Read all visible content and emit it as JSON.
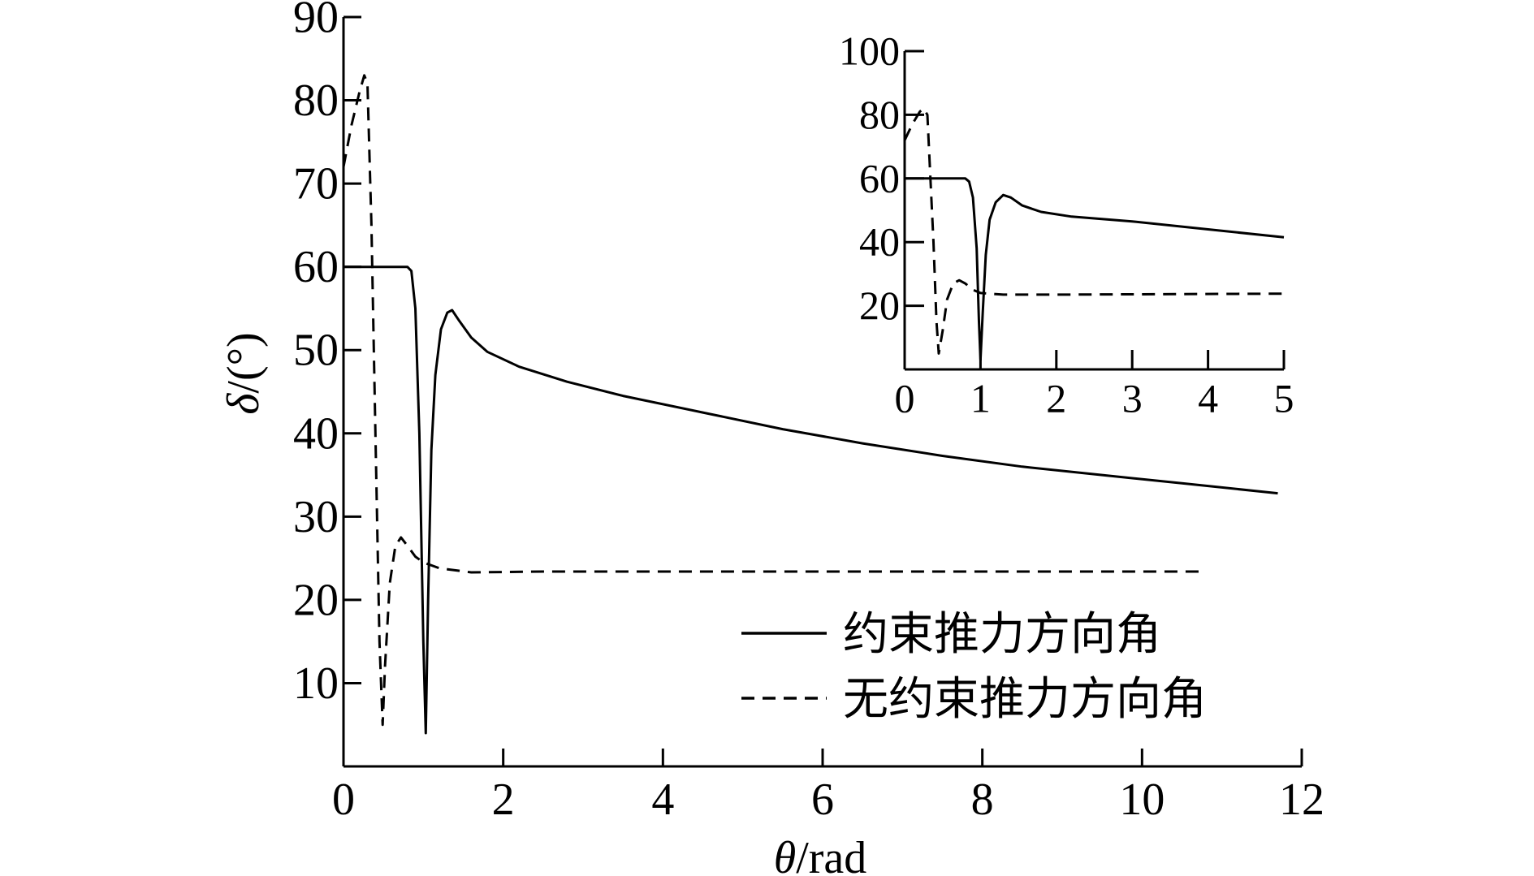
{
  "chart_data": [
    {
      "type": "line",
      "role": "main",
      "xlabel_symbol": "θ",
      "xlabel_unit": "/rad",
      "ylabel_symbol": "δ",
      "ylabel_unit": "/(°)",
      "xlim": [
        0,
        12
      ],
      "ylim": [
        0,
        90
      ],
      "xticks": [
        0,
        2,
        4,
        6,
        8,
        10,
        12
      ],
      "yticks": [
        10,
        20,
        30,
        40,
        50,
        60,
        70,
        80,
        90
      ],
      "grid": false,
      "legend_position": "bottom-right",
      "series": [
        {
          "name": "约束推力方向角",
          "style": "solid",
          "points": [
            [
              0,
              60
            ],
            [
              0.8,
              60
            ],
            [
              0.85,
              59.5
            ],
            [
              0.9,
              55
            ],
            [
              0.95,
              40
            ],
            [
              1.0,
              15
            ],
            [
              1.03,
              4
            ],
            [
              1.06,
              20
            ],
            [
              1.1,
              38
            ],
            [
              1.15,
              47
            ],
            [
              1.22,
              52.5
            ],
            [
              1.3,
              54.5
            ],
            [
              1.36,
              54.8
            ],
            [
              1.45,
              53.5
            ],
            [
              1.6,
              51.5
            ],
            [
              1.8,
              49.8
            ],
            [
              2.2,
              48
            ],
            [
              2.8,
              46.2
            ],
            [
              3.5,
              44.5
            ],
            [
              4.5,
              42.5
            ],
            [
              5.5,
              40.5
            ],
            [
              6.5,
              38.8
            ],
            [
              7.5,
              37.3
            ],
            [
              8.5,
              36
            ],
            [
              9.5,
              35
            ],
            [
              10.5,
              34
            ],
            [
              11.7,
              32.8
            ]
          ]
        },
        {
          "name": "无约束推力方向角",
          "style": "dashed",
          "points": [
            [
              0,
              72
            ],
            [
              0.1,
              77
            ],
            [
              0.2,
              81
            ],
            [
              0.26,
              83
            ],
            [
              0.3,
              82
            ],
            [
              0.35,
              65
            ],
            [
              0.4,
              40
            ],
            [
              0.45,
              15
            ],
            [
              0.49,
              5
            ],
            [
              0.52,
              12
            ],
            [
              0.58,
              22
            ],
            [
              0.65,
              26.5
            ],
            [
              0.72,
              27.5
            ],
            [
              0.8,
              26.5
            ],
            [
              0.9,
              25.2
            ],
            [
              1.0,
              24.5
            ],
            [
              1.2,
              23.8
            ],
            [
              1.6,
              23.3
            ],
            [
              2.5,
              23.4
            ],
            [
              10.8,
              23.4
            ]
          ]
        }
      ]
    },
    {
      "type": "line",
      "role": "inset",
      "xlim": [
        0,
        5
      ],
      "ylim": [
        0,
        100
      ],
      "xticks": [
        0,
        1,
        2,
        3,
        4,
        5
      ],
      "yticks": [
        20,
        40,
        60,
        80,
        100
      ],
      "grid": false,
      "series": [
        {
          "name": "约束推力方向角",
          "style": "solid",
          "points": [
            [
              0,
              60
            ],
            [
              0.8,
              60
            ],
            [
              0.85,
              59
            ],
            [
              0.9,
              54
            ],
            [
              0.95,
              38
            ],
            [
              0.98,
              15
            ],
            [
              1.0,
              3
            ],
            [
              1.03,
              18
            ],
            [
              1.07,
              36
            ],
            [
              1.12,
              47
            ],
            [
              1.2,
              52.5
            ],
            [
              1.3,
              54.8
            ],
            [
              1.4,
              54
            ],
            [
              1.55,
              51.5
            ],
            [
              1.8,
              49.5
            ],
            [
              2.2,
              48
            ],
            [
              3,
              46.5
            ],
            [
              4,
              44
            ],
            [
              5,
              41.5
            ]
          ]
        },
        {
          "name": "无约束推力方向角",
          "style": "dashed",
          "points": [
            [
              0,
              72
            ],
            [
              0.1,
              77
            ],
            [
              0.2,
              81
            ],
            [
              0.25,
              82
            ],
            [
              0.3,
              80
            ],
            [
              0.33,
              65
            ],
            [
              0.38,
              40
            ],
            [
              0.42,
              15
            ],
            [
              0.45,
              5
            ],
            [
              0.5,
              12
            ],
            [
              0.56,
              22
            ],
            [
              0.64,
              27
            ],
            [
              0.72,
              28
            ],
            [
              0.8,
              27
            ],
            [
              0.9,
              25
            ],
            [
              1.0,
              24
            ],
            [
              1.3,
              23.5
            ],
            [
              2,
              23.5
            ],
            [
              5,
              23.8
            ]
          ]
        }
      ]
    }
  ]
}
